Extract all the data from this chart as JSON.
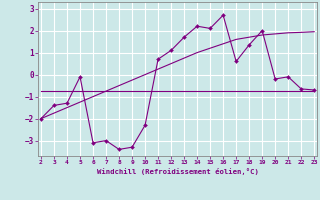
{
  "xlabel": "Windchill (Refroidissement éolien,°C)",
  "x_data": [
    2,
    3,
    4,
    5,
    6,
    7,
    8,
    9,
    10,
    11,
    12,
    13,
    14,
    15,
    16,
    17,
    18,
    19,
    20,
    21,
    22,
    23
  ],
  "y_main": [
    -2.0,
    -1.4,
    -1.3,
    -0.1,
    -3.1,
    -3.0,
    -3.4,
    -3.3,
    -2.3,
    0.7,
    1.1,
    1.7,
    2.2,
    2.1,
    2.7,
    0.6,
    1.35,
    2.0,
    -0.2,
    -0.1,
    -0.65,
    -0.7
  ],
  "y_line1": [
    -0.75,
    -0.75,
    -0.75,
    -0.75,
    -0.75,
    -0.75,
    -0.75,
    -0.75,
    -0.75,
    -0.75,
    -0.75,
    -0.75,
    -0.75,
    -0.75,
    -0.75,
    -0.75,
    -0.75,
    -0.75,
    -0.75,
    -0.75,
    -0.75,
    -0.75
  ],
  "y_line2": [
    -2.0,
    -1.75,
    -1.5,
    -1.25,
    -1.0,
    -0.75,
    -0.5,
    -0.25,
    0.0,
    0.25,
    0.5,
    0.75,
    1.0,
    1.2,
    1.4,
    1.6,
    1.7,
    1.8,
    1.85,
    1.9,
    1.92,
    1.95
  ],
  "line_color": "#800080",
  "bg_color": "#cce8e8",
  "grid_color": "#b0d8d8",
  "xlim": [
    2,
    23
  ],
  "ylim": [
    -3.7,
    3.3
  ],
  "yticks": [
    -3,
    -2,
    -1,
    0,
    1,
    2,
    3
  ],
  "xticks": [
    2,
    3,
    4,
    5,
    6,
    7,
    8,
    9,
    10,
    11,
    12,
    13,
    14,
    15,
    16,
    17,
    18,
    19,
    20,
    21,
    22,
    23
  ]
}
